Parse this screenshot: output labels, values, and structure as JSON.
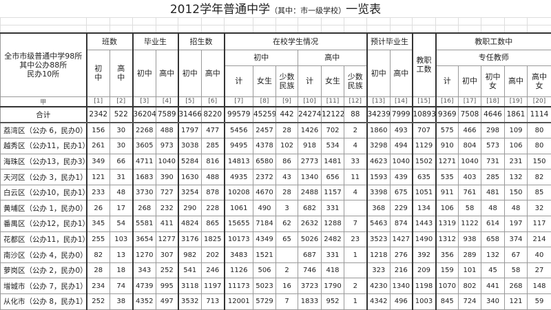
{
  "title": {
    "main": "2012学年普通中学",
    "sub": "（其中：市一级学校）",
    "suffix": "一览表"
  },
  "header": {
    "corner_lines": [
      "全市市级普通中学98所",
      "其中公办88所",
      "民办10所"
    ],
    "classes": "班数",
    "graduates": "毕业生",
    "enrollment": "招生数",
    "students": "在校学生情况",
    "expected": "预计毕业生",
    "staff": "教职工数",
    "staff_of": "教职工数中",
    "full_time": "专任教师",
    "junior": "初中",
    "senior": "高中",
    "total": "计",
    "female": "女生",
    "minority": "少数民族",
    "junior_female": "初中女",
    "senior_female": "高中女",
    "index_label": "甲",
    "indices": [
      "[1]",
      "[2]",
      "[3]",
      "[4]",
      "[5]",
      "[6]",
      "[7]",
      "[8]",
      "[9]",
      "[10]",
      "[11]",
      "[12]",
      "[13]",
      "[14]",
      "[15]",
      "[16]",
      "[17]",
      "[18]",
      "[19]",
      "[20]"
    ]
  },
  "total_row": {
    "label": "合计",
    "values": [
      "2342",
      "522",
      "36204",
      "7589",
      "31466",
      "8220",
      "99579",
      "45259",
      "442",
      "24274",
      "12122",
      "88",
      "34239",
      "7999",
      "10893",
      "9369",
      "7508",
      "4646",
      "1861",
      "1114"
    ]
  },
  "rows": [
    {
      "label": "荔湾区（公办 6，民办0）",
      "values": [
        "156",
        "30",
        "2268",
        "488",
        "1797",
        "477",
        "5456",
        "2457",
        "28",
        "1426",
        "702",
        "2",
        "1860",
        "493",
        "707",
        "575",
        "466",
        "298",
        "109",
        "80"
      ]
    },
    {
      "label": "越秀区（公办11，民办1）",
      "values": [
        "261",
        "30",
        "3605",
        "973",
        "3038",
        "285",
        "9495",
        "4378",
        "102",
        "918",
        "534",
        "4",
        "3298",
        "494",
        "1129",
        "910",
        "804",
        "573",
        "106",
        "80"
      ]
    },
    {
      "label": "海珠区（公办13，民办3）",
      "values": [
        "349",
        "66",
        "4711",
        "1040",
        "5284",
        "816",
        "14813",
        "6580",
        "86",
        "2773",
        "1481",
        "33",
        "4623",
        "1040",
        "1502",
        "1271",
        "1040",
        "731",
        "231",
        "150"
      ]
    },
    {
      "label": "天河区（公办 3，民办1）",
      "values": [
        "121",
        "31",
        "1683",
        "390",
        "1630",
        "488",
        "4935",
        "2372",
        "43",
        "1340",
        "656",
        "11",
        "1593",
        "439",
        "635",
        "535",
        "403",
        "285",
        "132",
        "82"
      ]
    },
    {
      "label": "白云区（公办10，民办1）",
      "values": [
        "233",
        "48",
        "3730",
        "727",
        "3254",
        "878",
        "10208",
        "4670",
        "28",
        "2488",
        "1157",
        "4",
        "3398",
        "675",
        "1051",
        "911",
        "761",
        "481",
        "150",
        "85"
      ]
    },
    {
      "label": "黄埔区（公办 1，民办0）",
      "values": [
        "26",
        "17",
        "268",
        "232",
        "290",
        "228",
        "1061",
        "490",
        "3",
        "682",
        "331",
        "",
        "368",
        "229",
        "134",
        "106",
        "58",
        "48",
        "48",
        "32"
      ]
    },
    {
      "label": "番禺区（公办12，民办1）",
      "values": [
        "345",
        "54",
        "5581",
        "411",
        "4824",
        "865",
        "15655",
        "7184",
        "62",
        "2632",
        "1288",
        "7",
        "5463",
        "874",
        "1443",
        "1319",
        "1122",
        "614",
        "197",
        "117"
      ]
    },
    {
      "label": "花都区（公办11，民办1）",
      "values": [
        "255",
        "103",
        "3654",
        "1277",
        "3176",
        "1825",
        "10173",
        "4349",
        "65",
        "5026",
        "2482",
        "23",
        "3523",
        "1427",
        "1490",
        "1312",
        "938",
        "658",
        "374",
        "214"
      ]
    },
    {
      "label": "南沙区（公办 4，民办0）",
      "values": [
        "82",
        "13",
        "1270",
        "307",
        "982",
        "202",
        "3483",
        "1521",
        "",
        "687",
        "331",
        "1",
        "1218",
        "276",
        "392",
        "356",
        "289",
        "132",
        "67",
        "40"
      ]
    },
    {
      "label": "萝岗区（公办 2，民办0）",
      "values": [
        "28",
        "18",
        "343",
        "252",
        "541",
        "246",
        "1126",
        "506",
        "2",
        "746",
        "418",
        "",
        "323",
        "216",
        "209",
        "159",
        "101",
        "45",
        "58",
        "27"
      ]
    },
    {
      "label": "增城市（公办 7，民办1）",
      "values": [
        "234",
        "74",
        "4739",
        "995",
        "3118",
        "1197",
        "11173",
        "5023",
        "16",
        "3723",
        "1790",
        "2",
        "4230",
        "1340",
        "1198",
        "1070",
        "802",
        "441",
        "268",
        "148"
      ]
    },
    {
      "label": "从化市（公办 8，民办1）",
      "values": [
        "252",
        "38",
        "4352",
        "497",
        "3532",
        "713",
        "12001",
        "5729",
        "7",
        "1833",
        "952",
        "1",
        "4342",
        "496",
        "1003",
        "845",
        "724",
        "340",
        "121",
        "59"
      ]
    }
  ]
}
